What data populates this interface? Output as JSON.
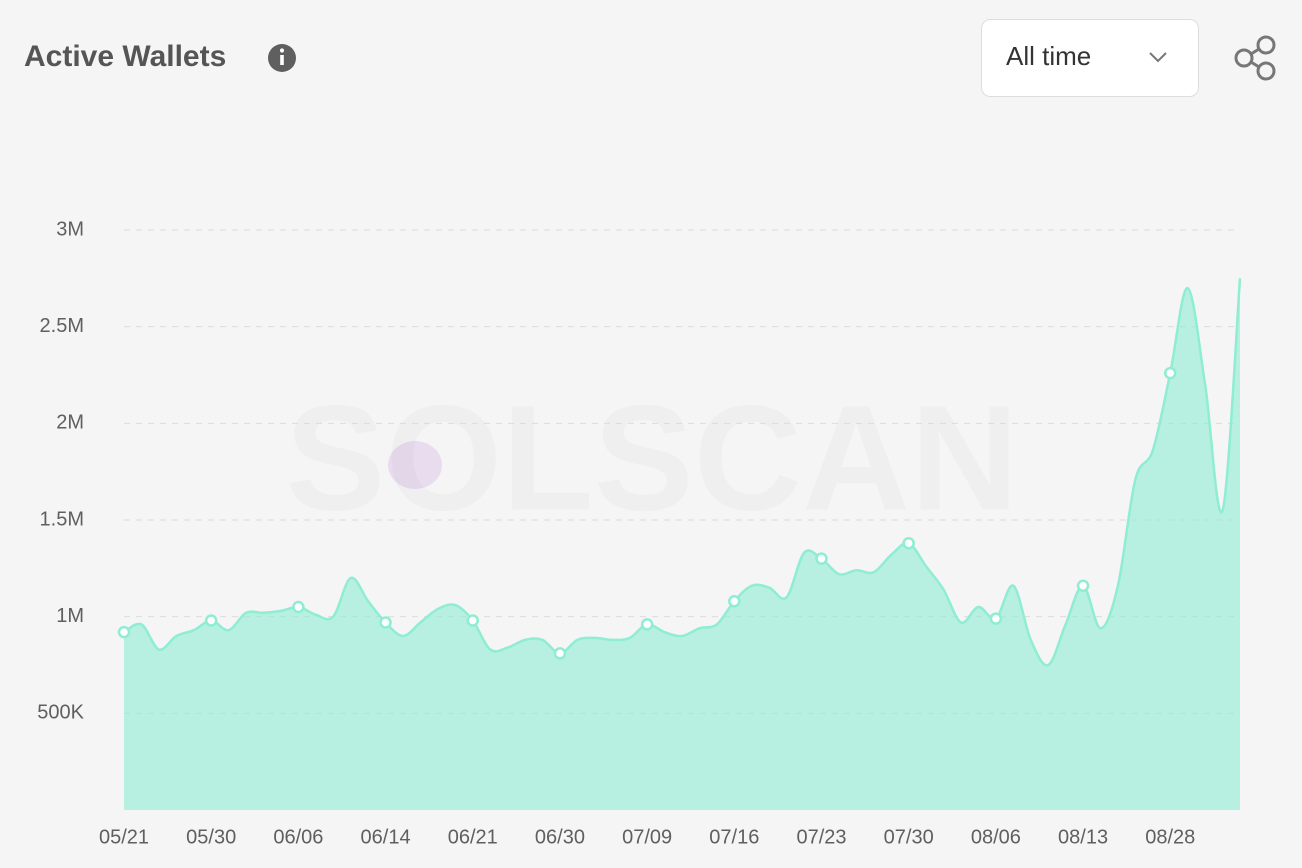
{
  "header": {
    "title": "Active Wallets",
    "range_select": "All time"
  },
  "chart_data": {
    "type": "area",
    "watermark": "SOLSCAN",
    "categories": [
      "05/21",
      null,
      null,
      null,
      null,
      "05/30",
      null,
      null,
      null,
      null,
      "06/06",
      null,
      null,
      null,
      null,
      "06/14",
      null,
      null,
      null,
      null,
      "06/21",
      null,
      null,
      null,
      null,
      "06/30",
      null,
      null,
      null,
      null,
      "07/09",
      null,
      null,
      null,
      null,
      "07/16",
      null,
      null,
      null,
      null,
      "07/23",
      null,
      null,
      null,
      null,
      "07/30",
      null,
      null,
      null,
      null,
      "08/06",
      null,
      null,
      null,
      null,
      "08/13",
      null,
      null,
      null,
      null,
      "08/28",
      null,
      null,
      null,
      null
    ],
    "series": [
      {
        "name": "Active Wallets",
        "color": "#8eedd2",
        "values": [
          920000,
          960000,
          830000,
          900000,
          930000,
          980000,
          930000,
          1020000,
          1020000,
          1030000,
          1050000,
          1010000,
          1000000,
          1200000,
          1080000,
          970000,
          900000,
          970000,
          1040000,
          1060000,
          980000,
          830000,
          840000,
          880000,
          880000,
          810000,
          880000,
          890000,
          880000,
          890000,
          960000,
          920000,
          900000,
          940000,
          960000,
          1080000,
          1160000,
          1150000,
          1100000,
          1330000,
          1300000,
          1220000,
          1240000,
          1230000,
          1320000,
          1380000,
          1260000,
          1140000,
          970000,
          1050000,
          990000,
          1160000,
          880000,
          750000,
          960000,
          1160000,
          940000,
          1160000,
          1710000,
          1860000,
          2260000,
          2700000,
          2200000,
          1550000,
          2750000
        ]
      }
    ],
    "ylim": [
      0,
      3000000
    ],
    "yticks": [
      {
        "value": 500000,
        "label": "500K"
      },
      {
        "value": 1000000,
        "label": "1M"
      },
      {
        "value": 1500000,
        "label": "1.5M"
      },
      {
        "value": 2000000,
        "label": "2M"
      },
      {
        "value": 2500000,
        "label": "2.5M"
      },
      {
        "value": 3000000,
        "label": "3M"
      }
    ],
    "grid": true
  }
}
